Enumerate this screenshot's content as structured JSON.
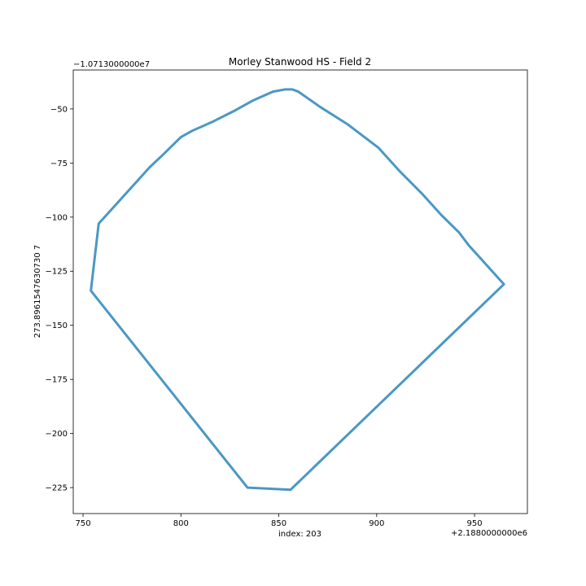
{
  "chart_data": {
    "type": "line",
    "title": "Morley Stanwood HS - Field 2",
    "xlabel": "index: 203",
    "ylabel": "273.8961547630730 7",
    "x_offset_label": "+2.1880000000e6",
    "y_offset_label": "−1.0713000000e7",
    "xlim": [
      745,
      977
    ],
    "ylim": [
      -237,
      -32
    ],
    "x_ticks": [
      750,
      800,
      850,
      900,
      950
    ],
    "y_ticks": [
      -50,
      -75,
      -100,
      -125,
      -150,
      -175,
      -200,
      -225
    ],
    "x_tick_labels": [
      "750",
      "800",
      "850",
      "900",
      "950"
    ],
    "y_tick_labels": [
      "−50",
      "−75",
      "−100",
      "−125",
      "−150",
      "−175",
      "−200",
      "−225"
    ],
    "grid": false,
    "series": [
      {
        "color": "#4a98c4",
        "x": [
          853,
          857,
          860,
          871,
          885,
          901,
          912,
          923,
          933,
          942,
          947,
          953,
          965,
          856,
          834,
          754,
          758,
          761,
          776,
          784,
          791,
          800,
          806,
          816,
          827,
          837,
          847,
          853
        ],
        "y": [
          -41,
          -41,
          -42,
          -49,
          -57,
          -68,
          -79,
          -89,
          -99,
          -107,
          -113,
          -119,
          -131,
          -226,
          -225,
          -134,
          -103,
          -100,
          -85,
          -77,
          -71,
          -63,
          -60,
          -56,
          -51,
          -46,
          -42,
          -41
        ]
      }
    ]
  }
}
